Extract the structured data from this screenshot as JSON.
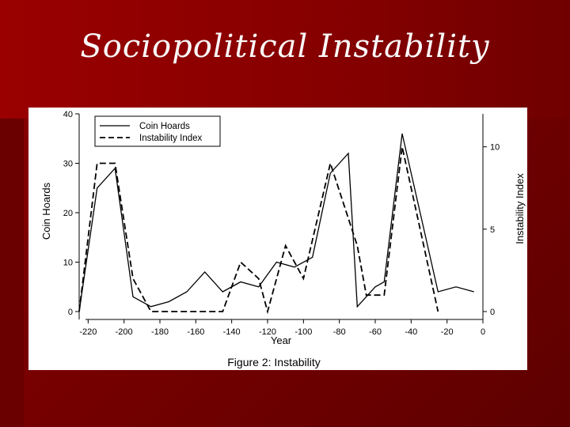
{
  "slide_title": "Sociopolitical Instability",
  "figure_caption": "Figure 2: Instability",
  "colors": {
    "background": "#7a0000",
    "title_text": "#ffffff",
    "line": "#000000"
  },
  "chart_data": {
    "type": "line",
    "xlabel": "Year",
    "ylabel_left": "Coin Hoards",
    "ylabel_right": "Instability Index",
    "xlim": [
      -225,
      0
    ],
    "ylim_left": [
      0,
      40
    ],
    "ylim_right": [
      0,
      12
    ],
    "x_ticks": [
      -220,
      -200,
      -180,
      -160,
      -140,
      -120,
      -100,
      -80,
      -60,
      -40,
      -20,
      0
    ],
    "y_left_ticks": [
      0,
      10,
      20,
      30,
      40
    ],
    "y_right_ticks": [
      0,
      5,
      10
    ],
    "legend_position": "top-left",
    "grid": false,
    "series": [
      {
        "name": "Coin Hoards",
        "axis": "left",
        "style": "solid",
        "x": [
          -225,
          -215,
          -205,
          -195,
          -185,
          -175,
          -165,
          -155,
          -145,
          -135,
          -125,
          -115,
          -105,
          -95,
          -85,
          -75,
          -70,
          -60,
          -55,
          -45,
          -35,
          -25,
          -15,
          -5
        ],
        "y": [
          0,
          25,
          29,
          3,
          1,
          2,
          4,
          8,
          4,
          6,
          5,
          10,
          9,
          11,
          28,
          32,
          1,
          5,
          6,
          36,
          20,
          4,
          5,
          4
        ]
      },
      {
        "name": "Instability Index",
        "axis": "right",
        "style": "dashed",
        "x": [
          -225,
          -215,
          -205,
          -195,
          -185,
          -145,
          -135,
          -125,
          -120,
          -110,
          -100,
          -85,
          -70,
          -65,
          -55,
          -45,
          -35,
          -25
        ],
        "y": [
          0,
          9,
          9,
          2,
          0,
          0,
          3,
          2,
          0,
          4,
          2,
          9,
          4,
          1,
          1,
          10,
          5,
          0
        ]
      }
    ]
  }
}
